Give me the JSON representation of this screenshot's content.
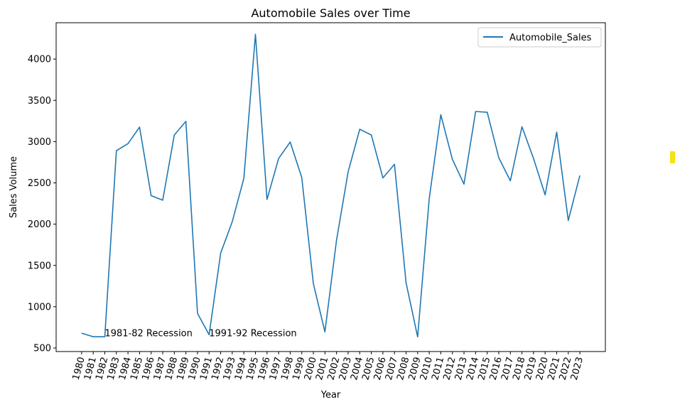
{
  "chart_data": {
    "type": "line",
    "title": "Automobile Sales over Time",
    "xlabel": "Year",
    "ylabel": "Sales Volume",
    "x": [
      1980,
      1981,
      1982,
      1983,
      1984,
      1985,
      1986,
      1987,
      1988,
      1989,
      1990,
      1991,
      1992,
      1993,
      1994,
      1995,
      1996,
      1997,
      1998,
      1999,
      2000,
      2001,
      2002,
      2003,
      2004,
      2005,
      2006,
      2007,
      2008,
      2009,
      2010,
      2011,
      2012,
      2013,
      2014,
      2015,
      2016,
      2017,
      2018,
      2019,
      2020,
      2021,
      2022,
      2023
    ],
    "series": [
      {
        "name": "Automobile_Sales",
        "color": "#1f77b4",
        "values": [
          680,
          636,
          636,
          2890,
          2975,
          3175,
          2345,
          2290,
          3080,
          3245,
          920,
          660,
          1650,
          2030,
          2555,
          4300,
          2300,
          2795,
          2995,
          2565,
          1280,
          695,
          1810,
          2635,
          3150,
          3080,
          2560,
          2725,
          1290,
          634,
          2310,
          3325,
          2785,
          2485,
          3365,
          3355,
          2805,
          2525,
          3180,
          2795,
          2355,
          3115,
          2045,
          2590
        ]
      }
    ],
    "xlim": [
      1978.15,
      1024.85
    ],
    "ylim": [
      457,
      4440
    ],
    "yticks": [
      500,
      1000,
      1500,
      2000,
      2500,
      3000,
      3500,
      4000
    ],
    "annotations": [
      {
        "text": "1981-82 Recession",
        "x": 1982,
        "y": 650
      },
      {
        "text": "1991-92 Recession",
        "x": 1991,
        "y": 650
      }
    ],
    "legend_position": "upper-right",
    "grid": false
  }
}
